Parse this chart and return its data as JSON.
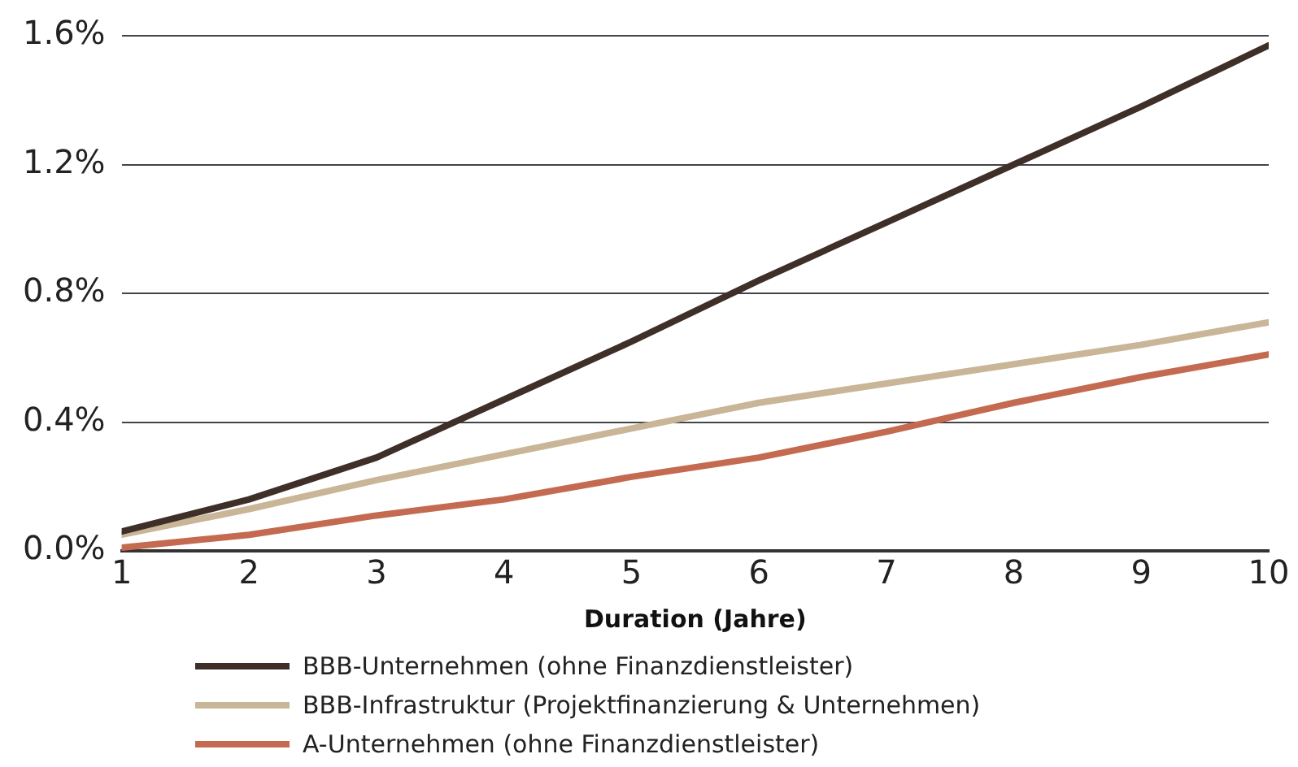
{
  "chart_data": {
    "type": "line",
    "xlabel": "Duration (Jahre)",
    "x": [
      1,
      2,
      3,
      4,
      5,
      6,
      7,
      8,
      9,
      10
    ],
    "series": [
      {
        "name": "BBB-Unternehmen (ohne Finanzdienstleister)",
        "color": "#3e2f28",
        "values": [
          0.06,
          0.16,
          0.29,
          0.47,
          0.65,
          0.84,
          1.02,
          1.2,
          1.38,
          1.57
        ]
      },
      {
        "name": "BBB-Infrastruktur (Projektfinanzierung & Unternehmen)",
        "color": "#c9b597",
        "values": [
          0.05,
          0.13,
          0.22,
          0.3,
          0.38,
          0.46,
          0.52,
          0.58,
          0.64,
          0.71
        ]
      },
      {
        "name": "A-Unternehmen (ohne Finanzdienstleister)",
        "color": "#c46a50",
        "values": [
          0.01,
          0.05,
          0.11,
          0.16,
          0.23,
          0.29,
          0.37,
          0.46,
          0.54,
          0.61
        ]
      }
    ],
    "xlim": [
      1,
      10
    ],
    "xticks": [
      1,
      2,
      3,
      4,
      5,
      6,
      7,
      8,
      9,
      10
    ],
    "ylim": [
      0,
      1.6
    ],
    "yticks": [
      {
        "value": 0,
        "label": "0.0%"
      },
      {
        "value": 0.4,
        "label": "0.4%"
      },
      {
        "value": 0.8,
        "label": "0.8%"
      },
      {
        "value": 1.2,
        "label": "1.2%"
      },
      {
        "value": 1.6,
        "label": "1.6%"
      }
    ],
    "grid": "y",
    "legend": "bottom left",
    "marker": "none",
    "line_style": "solid"
  }
}
